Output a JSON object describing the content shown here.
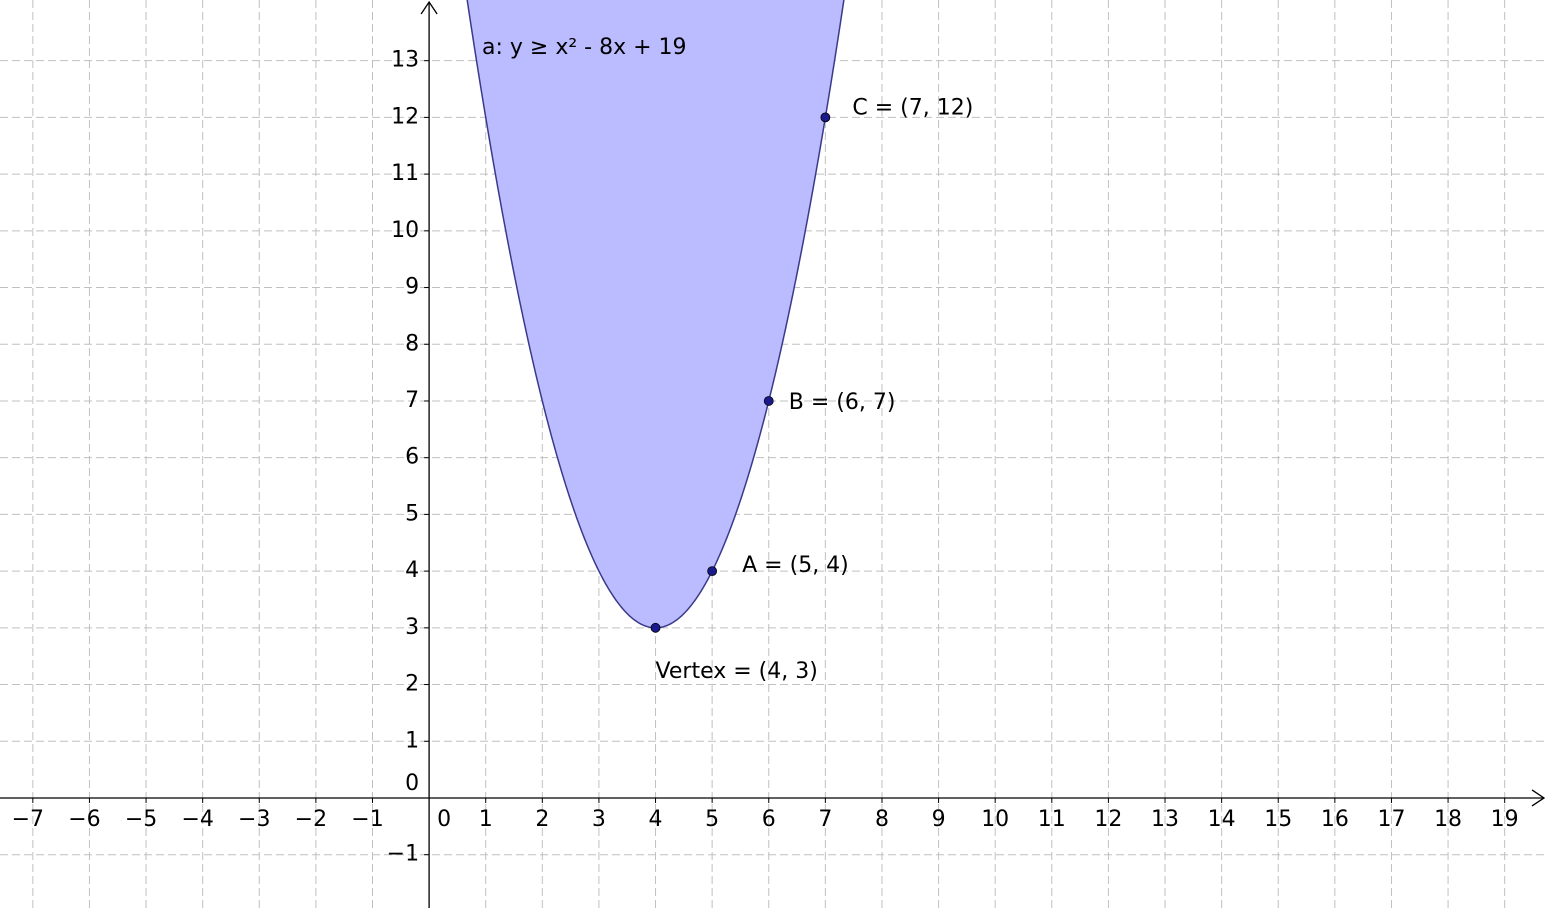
{
  "chart_data": {
    "type": "inequality",
    "label": "a: y ≥ x² - 8x + 19",
    "color": "#0000ff",
    "fill": "#bbbbff",
    "curve_color": "#3a3a8a",
    "points": [
      {
        "label": "Vertex = (4, 3)",
        "x": 4,
        "y": 3
      },
      {
        "label": "A = (5, 4)",
        "x": 5,
        "y": 4
      },
      {
        "label": "B = (6, 7)",
        "x": 6,
        "y": 7
      },
      {
        "label": "C = (7, 12)",
        "x": 7,
        "y": 12
      }
    ],
    "xlim": [
      -7.58,
      19.73
    ],
    "ylim": [
      -1.94,
      14.07
    ],
    "xticks": [
      {
        "value": -7,
        "label": "−7"
      },
      {
        "value": -6,
        "label": "−6"
      },
      {
        "value": -5,
        "label": "−5"
      },
      {
        "value": -4,
        "label": "−4"
      },
      {
        "value": -3,
        "label": "−3"
      },
      {
        "value": -2,
        "label": "−2"
      },
      {
        "value": -1,
        "label": "−1"
      },
      0,
      1,
      2,
      3,
      4,
      5,
      6,
      7,
      8,
      9,
      10,
      11,
      12,
      13,
      14,
      15,
      16,
      17,
      18,
      19
    ],
    "yticks": [
      {
        "value": -1,
        "label": "−1"
      },
      0,
      1,
      2,
      3,
      4,
      5,
      6,
      7,
      8,
      9,
      10,
      11,
      12,
      13
    ],
    "grid": true
  }
}
